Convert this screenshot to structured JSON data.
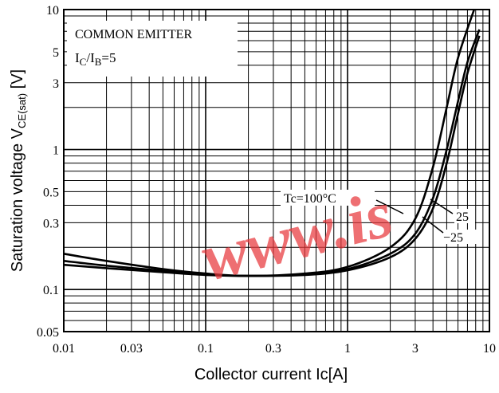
{
  "chart_data": {
    "type": "line",
    "title": "",
    "annotations": {
      "circuit": "COMMON EMITTER",
      "condition": "IC/IB=5",
      "condition_parts": [
        "I",
        "C",
        "/I",
        "B",
        "=5"
      ],
      "temp_label": "Tc=100°C"
    },
    "xlabel": "Collector current   Ic[A]",
    "ylabel_main": "Saturation voltage  V",
    "ylabel_sub": "CE(sat)",
    "ylabel_unit": " [V]",
    "x_scale": "log",
    "y_scale": "log",
    "xlim": [
      0.01,
      10
    ],
    "ylim": [
      0.05,
      10
    ],
    "x_ticks": [
      {
        "v": 0.01,
        "label": "0.01"
      },
      {
        "v": 0.03,
        "label": "0.03"
      },
      {
        "v": 0.1,
        "label": "0.1"
      },
      {
        "v": 0.3,
        "label": "0.3"
      },
      {
        "v": 1,
        "label": "1"
      },
      {
        "v": 3,
        "label": "3"
      },
      {
        "v": 10,
        "label": "10"
      }
    ],
    "y_ticks": [
      {
        "v": 0.05,
        "label": "0.05"
      },
      {
        "v": 0.1,
        "label": "0.1"
      },
      {
        "v": 0.3,
        "label": "0.3"
      },
      {
        "v": 0.5,
        "label": "0.5"
      },
      {
        "v": 1,
        "label": "1"
      },
      {
        "v": 3,
        "label": "3"
      },
      {
        "v": 5,
        "label": "5"
      },
      {
        "v": 10,
        "label": "10"
      }
    ],
    "grid": true,
    "series": [
      {
        "name": "Tc=100°C",
        "x": [
          0.01,
          0.02,
          0.05,
          0.1,
          0.2,
          0.5,
          1,
          2,
          3,
          4,
          5,
          6,
          7.8
        ],
        "y": [
          0.18,
          0.16,
          0.14,
          0.13,
          0.125,
          0.13,
          0.145,
          0.2,
          0.32,
          0.75,
          2.0,
          4.5,
          10
        ]
      },
      {
        "name": "25",
        "x": [
          0.01,
          0.02,
          0.05,
          0.1,
          0.2,
          0.5,
          1,
          2,
          3,
          4,
          5,
          6,
          7,
          8.5
        ],
        "y": [
          0.16,
          0.148,
          0.136,
          0.128,
          0.125,
          0.128,
          0.14,
          0.18,
          0.25,
          0.45,
          1.0,
          2.2,
          4.2,
          7.2
        ]
      },
      {
        "name": "−25",
        "x": [
          0.01,
          0.02,
          0.05,
          0.1,
          0.2,
          0.5,
          1,
          2,
          3,
          4,
          5,
          6,
          7,
          8.5
        ],
        "y": [
          0.15,
          0.142,
          0.133,
          0.127,
          0.125,
          0.127,
          0.137,
          0.17,
          0.23,
          0.38,
          0.8,
          1.8,
          3.5,
          6.5
        ]
      }
    ],
    "series_labels": [
      "25",
      "−25"
    ]
  },
  "watermark": "www.is",
  "colors": {
    "line": "#000000",
    "grid": "#000000",
    "background": "#ffffff",
    "watermark": "#e8373c"
  }
}
